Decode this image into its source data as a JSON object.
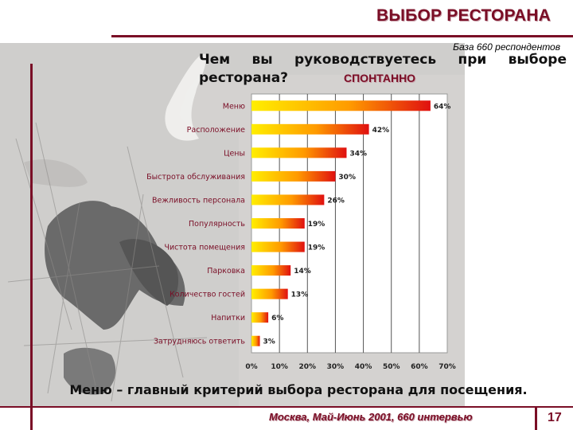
{
  "slide": {
    "title": "ВЫБОР РЕСТОРАНА",
    "base_note": "База 660 респондентов",
    "question": "Чем вы руководствуетесь при выборе ресторана?",
    "spontaneous_label": "СПОНТАННО",
    "conclusion": "Меню – главный критерий выбора ресторана для посещения.",
    "footer_note": "Москва, Май-Июнь 2001, 660 интервью",
    "page_number": "17"
  },
  "colors": {
    "brand": "#7a0e26",
    "bar_start": "#ffee00",
    "bar_end": "#e01010",
    "label_text": "#7a0e26"
  },
  "chart_data": {
    "type": "bar",
    "orientation": "horizontal",
    "categories": [
      "Меню",
      "Расположение",
      "Цены",
      "Быстрота обслуживания",
      "Вежливость персонала",
      "Популярность",
      "Чистота помещения",
      "Парковка",
      "Количество гостей",
      "Напитки",
      "Затрудняюсь ответить"
    ],
    "values": [
      64,
      42,
      34,
      30,
      26,
      19,
      19,
      14,
      13,
      6,
      3
    ],
    "value_labels": [
      "64%",
      "42%",
      "34%",
      "30%",
      "26%",
      "19%",
      "19%",
      "14%",
      "13%",
      "6%",
      "3%"
    ],
    "xlim": [
      0,
      70
    ],
    "x_ticks": [
      "0%",
      "10%",
      "20%",
      "30%",
      "40%",
      "50%",
      "60%",
      "70%"
    ],
    "grid": true,
    "legend": "none"
  }
}
